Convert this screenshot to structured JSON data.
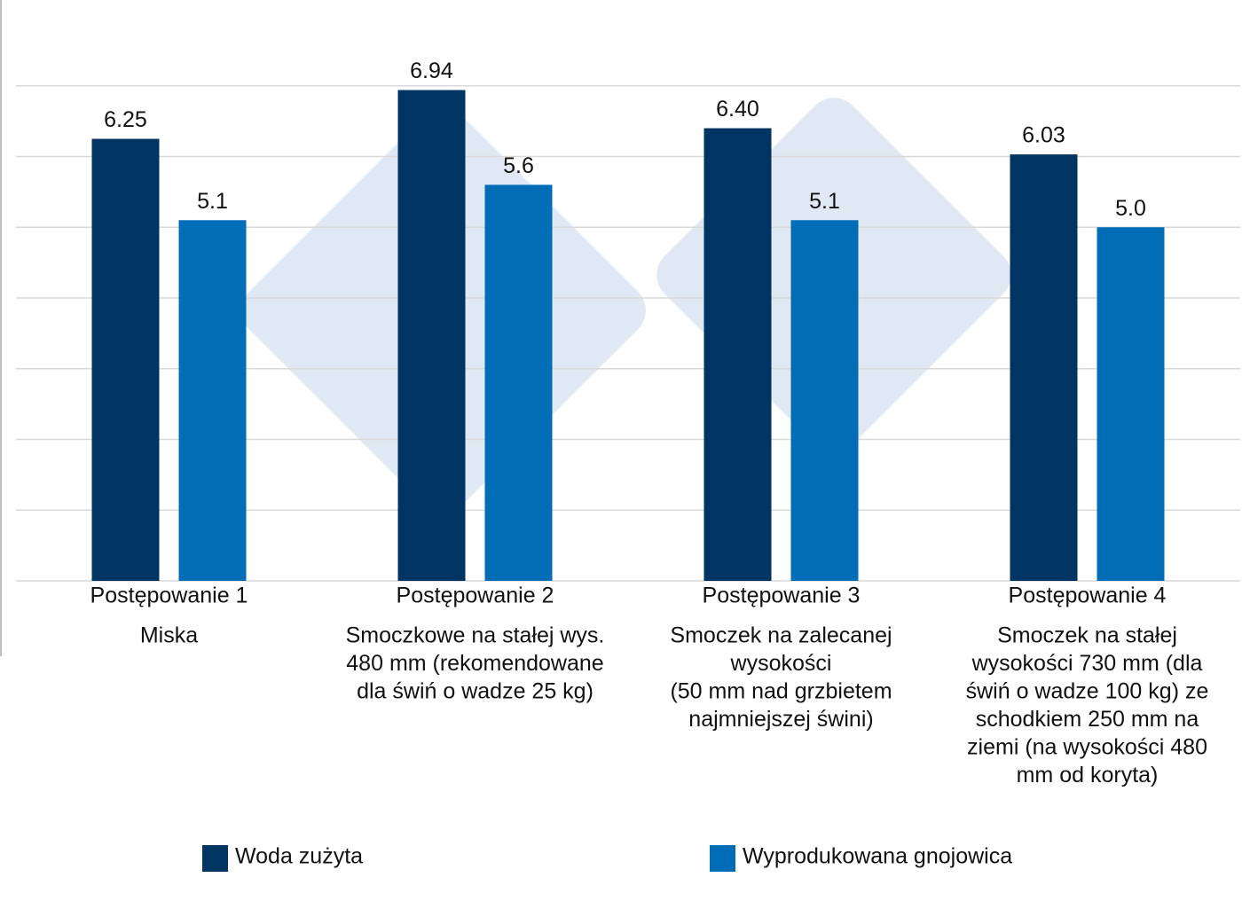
{
  "chart_data": {
    "type": "bar",
    "categories": [
      "Postępowanie 1",
      "Postępowanie 2",
      "Postępowanie 3",
      "Postępowanie 4"
    ],
    "category_descriptions": [
      [
        "Miska"
      ],
      [
        "Smoczkowe na stałej wys.",
        "480 mm (rekomendowane",
        "dla świń o wadze 25 kg)"
      ],
      [
        "Smoczek na zalecanej",
        "wysokości",
        "(50 mm nad grzbietem",
        "najmniejszej świni)"
      ],
      [
        "Smoczek na stałej",
        "wysokości 730 mm (dla",
        "świń o wadze 100 kg) ze",
        "schodkiem 250 mm na",
        "ziemi (na wysokości 480",
        "mm od koryta)"
      ]
    ],
    "series": [
      {
        "name": "Woda zużyta",
        "color": "#003462",
        "values": [
          6.25,
          6.94,
          6.4,
          6.03
        ],
        "value_labels": [
          "6.25",
          "6.94",
          "6.40",
          "6.03"
        ]
      },
      {
        "name": "Wyprodukowana gnojowica",
        "color": "#006db6",
        "values": [
          5.1,
          5.6,
          5.1,
          5.0
        ],
        "value_labels": [
          "5.1",
          "5.6",
          "5.1",
          "5.0"
        ]
      }
    ],
    "ylim": [
      0,
      8
    ],
    "yticks": [
      0,
      1,
      2,
      3,
      4,
      5,
      6,
      7
    ],
    "show_tick_labels": false,
    "grid": true
  }
}
